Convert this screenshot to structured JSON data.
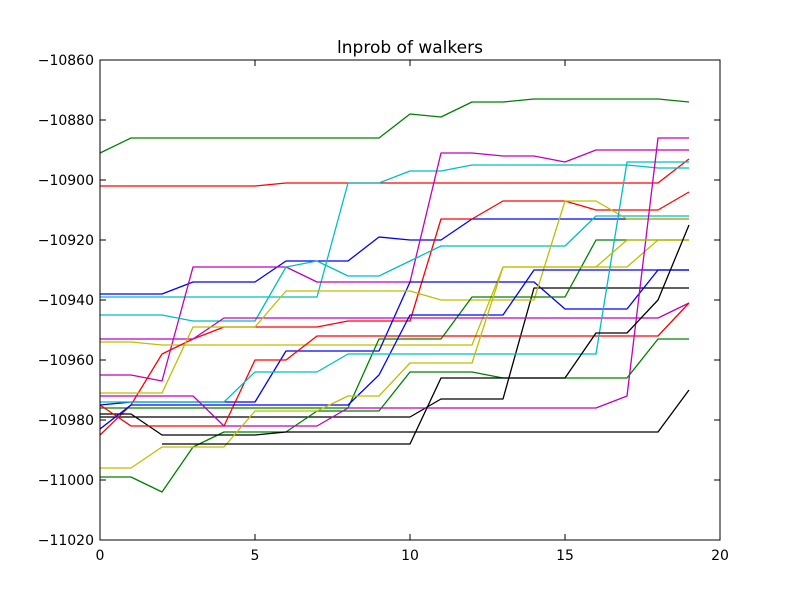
{
  "chart_data": {
    "type": "line",
    "title": "lnprob of walkers",
    "xlabel": "",
    "ylabel": "",
    "xlim": [
      0,
      20
    ],
    "ylim": [
      -11020,
      -10860
    ],
    "x_ticks": [
      0,
      5,
      10,
      15,
      20
    ],
    "y_ticks": [
      -11020,
      -11000,
      -10980,
      -10960,
      -10940,
      -10920,
      -10900,
      -10880,
      -10860
    ],
    "x_tick_labels": [
      "0",
      "5",
      "10",
      "15",
      "20"
    ],
    "y_tick_labels": [
      "−11020",
      "−11000",
      "−10980",
      "−10960",
      "−10940",
      "−10920",
      "−10900",
      "−10880",
      "−10860"
    ],
    "grid": false,
    "legend": "none",
    "x": [
      0,
      1,
      2,
      3,
      4,
      5,
      6,
      7,
      8,
      9,
      10,
      11,
      12,
      13,
      14,
      15,
      16,
      17,
      18,
      19
    ],
    "series": [
      {
        "color": "#008000",
        "values": [
          -10891,
          -10886,
          -10886,
          -10886,
          -10886,
          -10886,
          -10886,
          -10886,
          -10886,
          -10886,
          -10878,
          -10879,
          -10874,
          -10874,
          -10873,
          -10873,
          -10873,
          -10873,
          -10873,
          -10874
        ]
      },
      {
        "color": "#ff0000",
        "values": [
          -10902,
          -10902,
          -10902,
          -10902,
          -10902,
          -10902,
          -10901,
          -10901,
          -10901,
          -10901,
          -10901,
          -10901,
          -10901,
          -10901,
          -10901,
          -10901,
          -10901,
          -10901,
          -10901,
          -10893
        ]
      },
      {
        "color": "#0000ff",
        "values": [
          -10938,
          -10938,
          -10938,
          -10934,
          -10934,
          -10934,
          -10927,
          -10927,
          -10927,
          -10919,
          -10920,
          -10920,
          -10913,
          -10913,
          -10913,
          -10913,
          -10913,
          -10913,
          -10913,
          -10913
        ]
      },
      {
        "color": "#00bfbf",
        "values": [
          -10939,
          -10939,
          -10939,
          -10939,
          -10939,
          -10939,
          -10939,
          -10939,
          -10901,
          -10901,
          -10897,
          -10897,
          -10895,
          -10895,
          -10895,
          -10895,
          -10895,
          -10895,
          -10896,
          -10896
        ]
      },
      {
        "color": "#bf00bf",
        "values": [
          -10965,
          -10965,
          -10967,
          -10929,
          -10929,
          -10929,
          -10929,
          -10934,
          -10934,
          -10934,
          -10934,
          -10891,
          -10891,
          -10892,
          -10892,
          -10894,
          -10890,
          -10890,
          -10890,
          -10890
        ]
      },
      {
        "color": "#bfbf00",
        "values": [
          -10954,
          -10954,
          -10955,
          -10955,
          -10955,
          -10955,
          -10955,
          -10955,
          -10955,
          -10955,
          -10955,
          -10955,
          -10955,
          -10929,
          -10929,
          -10929,
          -10929,
          -10929,
          -10920,
          -10920
        ]
      },
      {
        "color": "#000000",
        "values": [
          -10979,
          -10979,
          -10979,
          -10979,
          -10979,
          -10979,
          -10979,
          -10979,
          -10979,
          -10979,
          -10979,
          -10973,
          -10973,
          -10973,
          -10936,
          -10936,
          -10936,
          -10936,
          -10936,
          -10936
        ]
      },
      {
        "color": "#008000",
        "values": [
          -10999,
          -10999,
          -11004,
          -10989,
          -10984,
          -10984,
          -10984,
          -10977,
          -10977,
          -10977,
          -10964,
          -10964,
          -10964,
          -10966,
          -10966,
          -10966,
          -10966,
          -10966,
          -10953,
          -10953
        ]
      },
      {
        "color": "#ff0000",
        "values": [
          -10985,
          -10975,
          -10958,
          -10953,
          -10949,
          -10949,
          -10949,
          -10949,
          -10947,
          -10947,
          -10947,
          -10913,
          -10913,
          -10907,
          -10907,
          -10907,
          -10910,
          -10910,
          -10910,
          -10904
        ]
      },
      {
        "color": "#0000ff",
        "values": [
          -10975,
          -10974,
          -10974,
          -10974,
          -10974,
          -10974,
          -10957,
          -10957,
          -10957,
          -10957,
          -10934,
          -10934,
          -10934,
          -10934,
          -10934,
          -10943,
          -10943,
          -10943,
          -10930,
          -10930
        ]
      },
      {
        "color": "#00bfbf",
        "values": [
          -10945,
          -10945,
          -10945,
          -10947,
          -10947,
          -10947,
          -10929,
          -10927,
          -10932,
          -10932,
          -10927,
          -10922,
          -10922,
          -10922,
          -10922,
          -10922,
          -10912,
          -10912,
          -10912,
          -10912
        ]
      },
      {
        "color": "#bf00bf",
        "values": [
          -10953,
          -10953,
          -10953,
          -10953,
          -10946,
          -10946,
          -10946,
          -10946,
          -10946,
          -10946,
          -10946,
          -10946,
          -10946,
          -10946,
          -10946,
          -10946,
          -10946,
          -10946,
          -10946,
          -10941
        ]
      },
      {
        "color": "#bfbf00",
        "values": [
          -10971,
          -10971,
          -10971,
          -10949,
          -10949,
          -10949,
          -10937,
          -10937,
          -10937,
          -10937,
          -10937,
          -10940,
          -10940,
          -10940,
          -10940,
          -10907,
          -10907,
          -10913,
          -10913,
          -10913
        ]
      },
      {
        "color": "#000000",
        "values": [
          -10978,
          -10978,
          -10985,
          -10985,
          -10985,
          -10985,
          -10984,
          -10984,
          -10984,
          -10984,
          -10984,
          -10984,
          -10984,
          -10984,
          -10984,
          -10984,
          -10984,
          -10984,
          -10984,
          -10970
        ]
      },
      {
        "color": "#008000",
        "values": [
          -10976,
          -10976,
          -10976,
          -10976,
          -10976,
          -10976,
          -10976,
          -10976,
          -10976,
          -10953,
          -10953,
          -10953,
          -10939,
          -10939,
          -10939,
          -10939,
          -10920,
          -10920,
          -10920,
          -10920
        ]
      },
      {
        "color": "#ff0000",
        "values": [
          -10975,
          -10982,
          -10982,
          -10982,
          -10982,
          -10960,
          -10960,
          -10952,
          -10952,
          -10952,
          -10952,
          -10952,
          -10952,
          -10952,
          -10952,
          -10952,
          -10952,
          -10952,
          -10952,
          -10941
        ]
      },
      {
        "color": "#0000ff",
        "values": [
          -10983,
          -10975,
          -10975,
          -10975,
          -10975,
          -10975,
          -10975,
          -10975,
          -10975,
          -10965,
          -10945,
          -10945,
          -10945,
          -10945,
          -10930,
          -10930,
          -10930,
          -10930,
          -10930,
          -10930
        ]
      },
      {
        "color": "#00bfbf",
        "values": [
          -10974,
          -10974,
          -10974,
          -10974,
          -10974,
          -10964,
          -10964,
          -10964,
          -10958,
          -10958,
          -10958,
          -10958,
          -10958,
          -10958,
          -10958,
          -10958,
          -10958,
          -10894,
          -10894,
          -10894
        ]
      },
      {
        "color": "#bf00bf",
        "values": [
          -10972,
          -10972,
          -10972,
          -10972,
          -10982,
          -10982,
          -10982,
          -10982,
          -10976,
          -10976,
          -10976,
          -10976,
          -10976,
          -10976,
          -10976,
          -10976,
          -10976,
          -10972,
          -10886,
          -10886
        ]
      },
      {
        "color": "#bfbf00",
        "values": [
          -10996,
          -10996,
          -10989,
          -10989,
          -10989,
          -10977,
          -10977,
          -10977,
          -10972,
          -10972,
          -10961,
          -10961,
          -10961,
          -10929,
          -10929,
          -10929,
          -10929,
          -10920,
          -10920,
          -10920
        ]
      },
      {
        "color": "#000000",
        "values": [
          null,
          null,
          -10988,
          -10988,
          -10988,
          -10988,
          -10988,
          -10988,
          -10988,
          -10988,
          -10988,
          -10966,
          -10966,
          -10966,
          -10966,
          -10966,
          -10951,
          -10951,
          -10940,
          -10915
        ]
      }
    ]
  }
}
